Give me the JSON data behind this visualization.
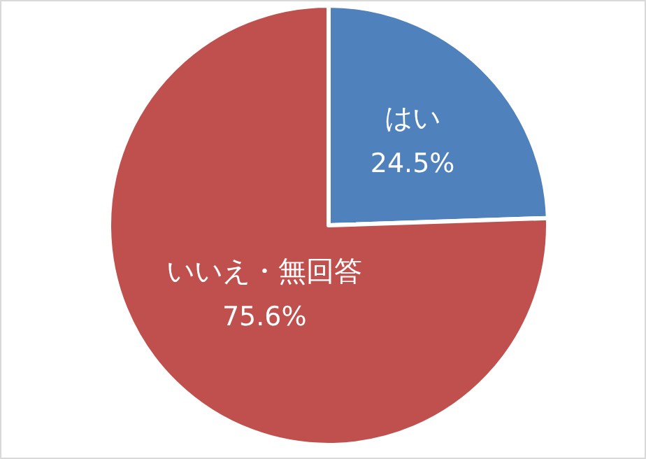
{
  "chart_data": {
    "type": "pie",
    "categories": [
      "はい",
      "いいえ・無回答"
    ],
    "values": [
      24.5,
      75.6
    ],
    "colors": [
      "#4f81bd",
      "#c0504d"
    ],
    "value_labels": [
      "24.5%",
      "75.6%"
    ]
  }
}
